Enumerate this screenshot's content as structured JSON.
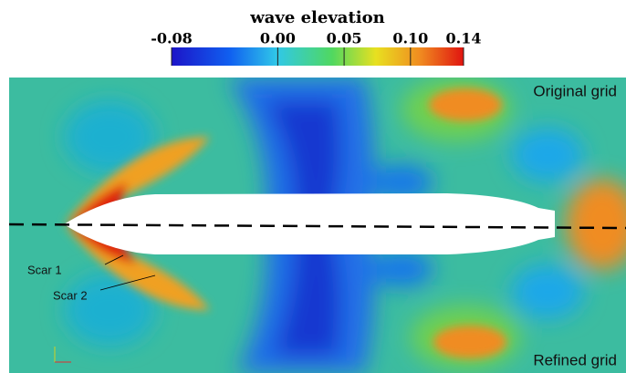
{
  "colorbar": {
    "title": "wave elevation",
    "range": [
      -0.08,
      0.14
    ],
    "ticks": [
      -0.08,
      {
        "value": 0,
        "label": "0.00"
      },
      0.05,
      {
        "value": 0.1,
        "label": "0.10"
      },
      0.14
    ]
  },
  "labels": {
    "top": "Original grid",
    "bottom": "Refined grid",
    "scar1": "Scar 1",
    "scar2": "Scar 2"
  }
}
